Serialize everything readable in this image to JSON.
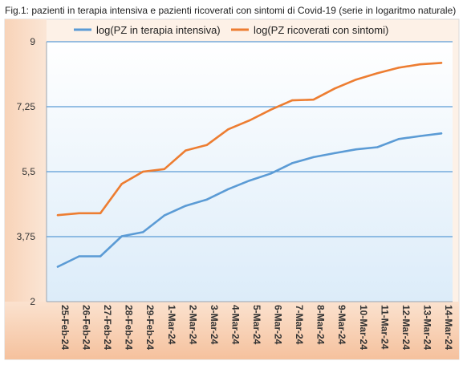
{
  "caption": "Fig.1: pazienti in terapia intensiva e pazienti ricoverati con sintomi di Covid-19 (serie in logaritmo naturale)",
  "chart_data": {
    "type": "line",
    "title": "",
    "xlabel": "",
    "ylabel": "",
    "ylim": [
      2,
      9
    ],
    "yticks": [
      "2",
      "3,75",
      "5,5",
      "7,25",
      "9"
    ],
    "ytick_values": [
      2,
      3.75,
      5.5,
      7.25,
      9
    ],
    "grid": "horizontal",
    "legend_position": "top",
    "categories": [
      "25-Feb-24",
      "26-Feb-24",
      "27-Feb-24",
      "28-Feb-24",
      "29-Feb-24",
      "1-Mar-24",
      "2-Mar-24",
      "3-Mar-24",
      "4-Mar-24",
      "5-Mar-24",
      "6-Mar-24",
      "7-Mar-24",
      "8-Mar-24",
      "9-Mar-24",
      "10-Mar-24",
      "11-Mar-24",
      "12-Mar-24",
      "13-Mar-24",
      "14-Mar-24"
    ],
    "series": [
      {
        "name": "log(PZ in terapia intensiva)",
        "color": "#5b9bd5",
        "values": [
          2.94,
          3.22,
          3.22,
          3.76,
          3.87,
          4.32,
          4.58,
          4.75,
          5.03,
          5.26,
          5.45,
          5.73,
          5.89,
          6.0,
          6.1,
          6.16,
          6.38,
          6.46,
          6.53
        ]
      },
      {
        "name": "log(PZ ricoverati con sintomi)",
        "color": "#ed7d31",
        "values": [
          4.33,
          4.38,
          4.38,
          5.17,
          5.5,
          5.57,
          6.07,
          6.22,
          6.64,
          6.88,
          7.17,
          7.42,
          7.44,
          7.74,
          7.98,
          8.15,
          8.3,
          8.39,
          8.43
        ]
      }
    ]
  }
}
